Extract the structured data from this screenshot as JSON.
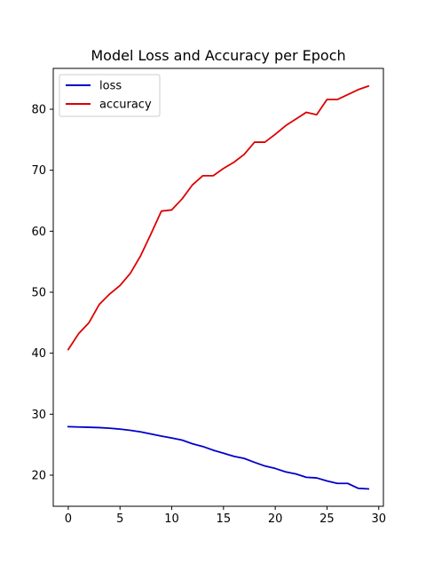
{
  "chart_data": {
    "type": "line",
    "title": "Model Loss and Accuracy per Epoch",
    "xlabel": "",
    "ylabel": "",
    "x": [
      0,
      1,
      2,
      3,
      4,
      5,
      6,
      7,
      8,
      9,
      10,
      11,
      12,
      13,
      14,
      15,
      16,
      17,
      18,
      19,
      20,
      21,
      22,
      23,
      24,
      25,
      26,
      27,
      28,
      29
    ],
    "xlim": [
      -1.45,
      30.45
    ],
    "ylim": [
      14.9,
      86.7
    ],
    "xticks": [
      0,
      5,
      10,
      15,
      20,
      25,
      30
    ],
    "yticks": [
      20,
      30,
      40,
      50,
      60,
      70,
      80
    ],
    "grid": false,
    "legend_position": "upper-left",
    "series": [
      {
        "name": "loss",
        "color": "#0000cc",
        "values": [
          27.95,
          27.9,
          27.85,
          27.8,
          27.7,
          27.55,
          27.35,
          27.1,
          26.75,
          26.4,
          26.1,
          25.75,
          25.15,
          24.7,
          24.1,
          23.6,
          23.1,
          22.75,
          22.1,
          21.5,
          21.1,
          20.55,
          20.2,
          19.65,
          19.55,
          19.05,
          18.65,
          18.65,
          17.85,
          17.75
        ]
      },
      {
        "name": "accuracy",
        "color": "#dd0000",
        "values": [
          40.6,
          43.2,
          45.0,
          48.0,
          49.7,
          51.1,
          53.1,
          56.0,
          59.6,
          63.3,
          63.5,
          65.3,
          67.6,
          69.1,
          69.1,
          70.3,
          71.3,
          72.6,
          74.6,
          74.6,
          75.9,
          77.3,
          78.4,
          79.5,
          79.1,
          81.6,
          81.6,
          82.4,
          83.2,
          83.8
        ]
      }
    ]
  }
}
